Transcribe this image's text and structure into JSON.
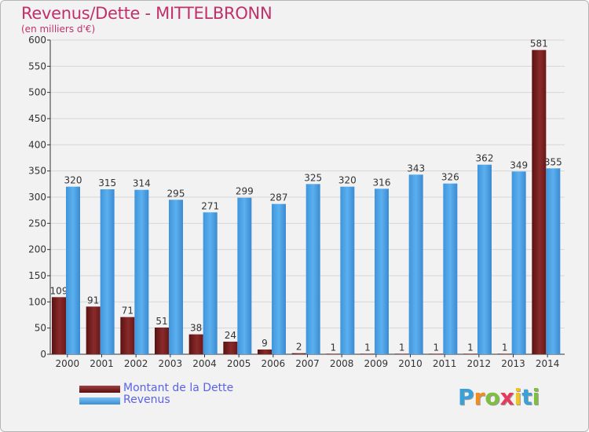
{
  "header": {
    "title": "Revenus/Dette - MITTELBRONN",
    "subtitle": "(en milliers d'€)"
  },
  "colors": {
    "dette": "#7b1f1f",
    "revenus": "#4aa3e6",
    "title": "#c0306a",
    "legend_text": "#5b63e5"
  },
  "chart_data": {
    "type": "bar",
    "title": "Revenus/Dette - MITTELBRONN",
    "ylabel": "(en milliers d'€)",
    "xlabel": "",
    "ylim": [
      0,
      600
    ],
    "yticks": [
      0,
      50,
      100,
      150,
      200,
      250,
      300,
      350,
      400,
      450,
      500,
      550,
      600
    ],
    "grid": true,
    "categories": [
      "2000",
      "2001",
      "2002",
      "2003",
      "2004",
      "2005",
      "2006",
      "2007",
      "2008",
      "2009",
      "2010",
      "2011",
      "2012",
      "2013",
      "2014"
    ],
    "series": [
      {
        "name": "Montant de la Dette",
        "color": "#7b1f1f",
        "values": [
          109,
          91,
          71,
          51,
          38,
          24,
          9,
          2,
          1,
          1,
          1,
          1,
          1,
          1,
          581
        ]
      },
      {
        "name": "Revenus",
        "color": "#4aa3e6",
        "values": [
          320,
          315,
          314,
          295,
          271,
          299,
          287,
          325,
          320,
          316,
          343,
          326,
          362,
          349,
          355
        ]
      }
    ],
    "legend_position": "bottom-left"
  },
  "legend": {
    "items": [
      {
        "label": "Montant de la Dette",
        "color": "#7b1f1f"
      },
      {
        "label": "Revenus",
        "color": "#4aa3e6"
      }
    ]
  },
  "logo": {
    "letters": [
      "P",
      "r",
      "o",
      "x",
      "i",
      "t",
      "i"
    ],
    "colors": [
      "#3aa0d8",
      "#f28c1e",
      "#7fbf3f",
      "#e63a5c",
      "#f2c21e",
      "#3aa0d8",
      "#7fbf3f"
    ]
  }
}
